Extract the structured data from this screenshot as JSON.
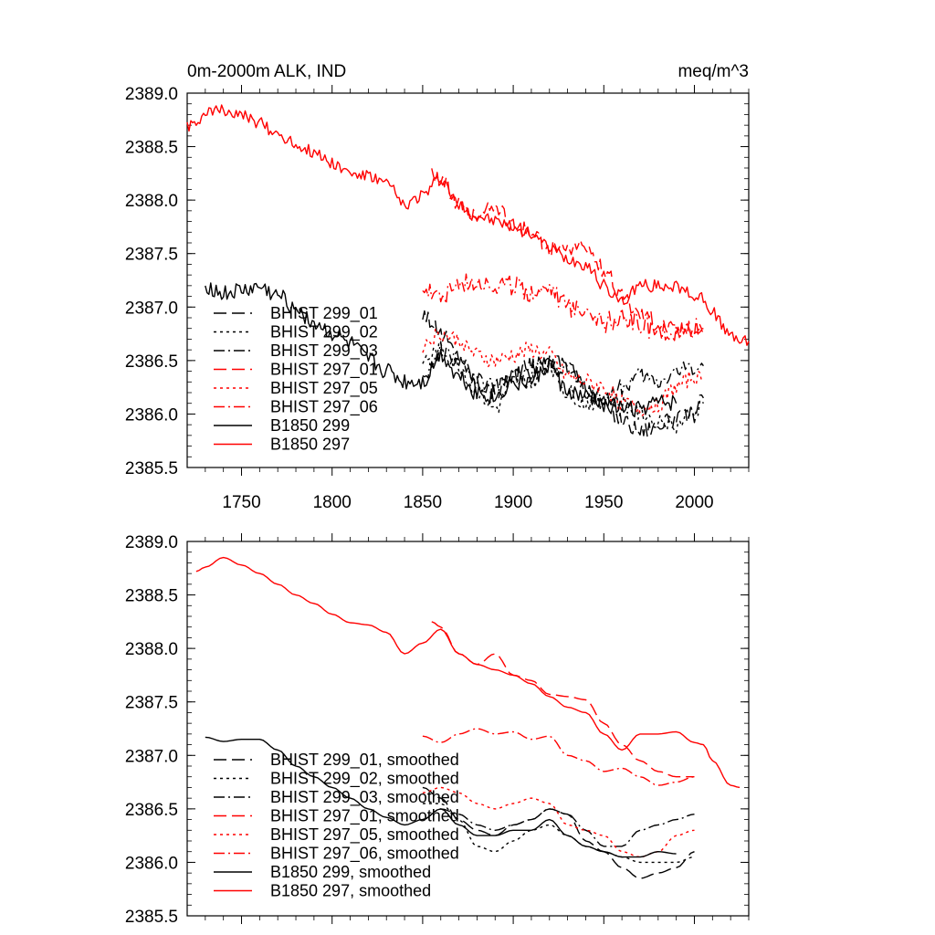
{
  "chart_data": [
    {
      "type": "line",
      "title_left": "0m-2000m ALK, IND",
      "title_right": "meq/m^3",
      "xlim": [
        1720,
        2030
      ],
      "ylim": [
        2385.5,
        2389.0
      ],
      "xticks": [
        1750,
        1800,
        1850,
        1900,
        1950,
        2000
      ],
      "xtick_labels": [
        "1750",
        "1800",
        "1850",
        "1900",
        "1950",
        "2000"
      ],
      "yticks": [
        2385.5,
        2386.0,
        2386.5,
        2387.0,
        2387.5,
        2388.0,
        2388.5,
        2389.0
      ],
      "ytick_labels": [
        "2385.5",
        "2386.0",
        "2386.5",
        "2387.0",
        "2387.5",
        "2388.0",
        "2388.5",
        "2389.0"
      ],
      "legend": [
        "BHIST 299_01",
        "BHIST 299_02",
        "BHIST 299_03",
        "BHIST 297_01",
        "BHIST 297_05",
        "BHIST 297_06",
        "B1850 299",
        "B1850 297"
      ],
      "series": [
        {
          "name": "BHIST 299_01",
          "color": "#000000",
          "dash": "long",
          "noise": 0.08,
          "x": [
            1850,
            1860,
            1870,
            1880,
            1890,
            1900,
            1910,
            1920,
            1930,
            1940,
            1950,
            1960,
            1970,
            1980,
            1990,
            2000,
            2005
          ],
          "y": [
            2386.95,
            2386.75,
            2386.55,
            2386.3,
            2386.2,
            2386.4,
            2386.45,
            2386.5,
            2386.5,
            2386.2,
            2386.1,
            2385.95,
            2385.85,
            2385.9,
            2385.95,
            2386.0,
            2386.15
          ]
        },
        {
          "name": "BHIST 299_02",
          "color": "#000000",
          "dash": "dot",
          "noise": 0.08,
          "x": [
            1850,
            1860,
            1870,
            1880,
            1890,
            1900,
            1910,
            1920,
            1930,
            1940,
            1950,
            1960,
            1970,
            1980,
            1990,
            2000,
            2005
          ],
          "y": [
            2386.5,
            2386.6,
            2386.45,
            2386.2,
            2386.05,
            2386.3,
            2386.3,
            2386.45,
            2386.2,
            2386.1,
            2386.15,
            2386.1,
            2386.0,
            2385.95,
            2385.9,
            2386.05,
            2386.1
          ]
        },
        {
          "name": "BHIST 299_03",
          "color": "#000000",
          "dash": "dashdot",
          "noise": 0.08,
          "x": [
            1850,
            1860,
            1870,
            1880,
            1890,
            1900,
            1910,
            1920,
            1930,
            1940,
            1950,
            1960,
            1970,
            1980,
            1990,
            2000,
            2005
          ],
          "y": [
            2386.35,
            2386.6,
            2386.5,
            2386.3,
            2386.25,
            2386.35,
            2386.4,
            2386.45,
            2386.4,
            2386.25,
            2386.15,
            2386.25,
            2386.35,
            2386.3,
            2386.4,
            2386.45,
            2386.45
          ]
        },
        {
          "name": "BHIST 297_01",
          "color": "#ff0000",
          "dash": "long",
          "noise": 0.08,
          "x": [
            1855,
            1860,
            1870,
            1880,
            1890,
            1900,
            1910,
            1920,
            1930,
            1940,
            1950,
            1960,
            1970,
            1980,
            1990,
            2000,
            2005
          ],
          "y": [
            2388.25,
            2388.2,
            2387.95,
            2387.85,
            2387.95,
            2387.75,
            2387.7,
            2387.55,
            2387.55,
            2387.55,
            2387.35,
            2387.1,
            2386.95,
            2386.85,
            2386.8,
            2386.8,
            2386.75
          ]
        },
        {
          "name": "BHIST 297_05",
          "color": "#ff0000",
          "dash": "dot",
          "noise": 0.08,
          "x": [
            1850,
            1860,
            1870,
            1880,
            1890,
            1900,
            1910,
            1920,
            1930,
            1940,
            1950,
            1960,
            1970,
            1980,
            1990,
            2000,
            2005
          ],
          "y": [
            2386.65,
            2386.75,
            2386.7,
            2386.55,
            2386.5,
            2386.55,
            2386.6,
            2386.55,
            2386.35,
            2386.3,
            2386.25,
            2386.1,
            2386.05,
            2386.1,
            2386.25,
            2386.35,
            2386.3
          ]
        },
        {
          "name": "BHIST 297_06",
          "color": "#ff0000",
          "dash": "dashdot",
          "noise": 0.1,
          "x": [
            1850,
            1860,
            1870,
            1880,
            1890,
            1900,
            1910,
            1920,
            1930,
            1940,
            1950,
            1960,
            1970,
            1980,
            1990,
            2000,
            2005
          ],
          "y": [
            2387.2,
            2387.1,
            2387.2,
            2387.25,
            2387.2,
            2387.2,
            2387.15,
            2387.2,
            2387.0,
            2387.0,
            2386.85,
            2386.9,
            2386.85,
            2386.75,
            2386.75,
            2386.8,
            2386.8
          ]
        },
        {
          "name": "B1850 299",
          "color": "#000000",
          "dash": "solid",
          "noise": 0.08,
          "x": [
            1730,
            1740,
            1750,
            1760,
            1770,
            1780,
            1790,
            1800,
            1810,
            1820,
            1830,
            1840,
            1850,
            1860,
            1870,
            1880,
            1890,
            1900,
            1910,
            1920,
            1930,
            1940,
            1950,
            1960,
            1970,
            1980,
            1990
          ],
          "y": [
            2387.2,
            2387.12,
            2387.15,
            2387.18,
            2387.1,
            2387.0,
            2386.85,
            2386.75,
            2386.65,
            2386.5,
            2386.4,
            2386.3,
            2386.3,
            2386.55,
            2386.35,
            2386.2,
            2386.15,
            2386.3,
            2386.3,
            2386.45,
            2386.2,
            2386.15,
            2386.1,
            2386.05,
            2386.05,
            2386.1,
            2386.1
          ]
        },
        {
          "name": "B1850 297",
          "color": "#ff0000",
          "dash": "solid",
          "noise": 0.06,
          "x": [
            1720,
            1725,
            1730,
            1740,
            1750,
            1760,
            1770,
            1780,
            1790,
            1800,
            1810,
            1820,
            1830,
            1840,
            1850,
            1860,
            1870,
            1880,
            1890,
            1900,
            1910,
            1920,
            1930,
            1940,
            1950,
            1960,
            1970,
            1980,
            1990,
            2000,
            2005,
            2010,
            2020,
            2030
          ],
          "y": [
            2388.7,
            2388.75,
            2388.8,
            2388.85,
            2388.78,
            2388.72,
            2388.62,
            2388.52,
            2388.45,
            2388.35,
            2388.25,
            2388.22,
            2388.15,
            2387.95,
            2388.05,
            2388.2,
            2387.95,
            2387.85,
            2387.8,
            2387.75,
            2387.7,
            2387.55,
            2387.45,
            2387.4,
            2387.2,
            2387.05,
            2387.2,
            2387.2,
            2387.2,
            2387.1,
            2387.1,
            2386.95,
            2386.72,
            2386.68
          ]
        }
      ]
    },
    {
      "type": "line",
      "title_left": "",
      "title_right": "",
      "xlim": [
        1720,
        2030
      ],
      "ylim": [
        2385.5,
        2389.0
      ],
      "xticks": [
        1750,
        1800,
        1850,
        1900,
        1950,
        2000
      ],
      "xtick_labels": [],
      "yticks": [
        2385.5,
        2386.0,
        2386.5,
        2387.0,
        2387.5,
        2388.0,
        2388.5,
        2389.0
      ],
      "ytick_labels": [
        "2385.5",
        "2386.0",
        "2386.5",
        "2387.0",
        "2387.5",
        "2388.0",
        "2388.5",
        "2389.0"
      ],
      "legend": [
        "BHIST 299_01, smoothed",
        "BHIST 299_02, smoothed",
        "BHIST 299_03, smoothed",
        "BHIST 297_01, smoothed",
        "BHIST 297_05, smoothed",
        "BHIST 297_06, smoothed",
        "B1850 299, smoothed",
        "B1850 297, smoothed"
      ],
      "series": [
        {
          "name": "BHIST 299_01, smoothed",
          "color": "#000000",
          "dash": "long",
          "noise": 0,
          "x": [
            1850,
            1860,
            1870,
            1880,
            1890,
            1900,
            1910,
            1920,
            1930,
            1940,
            1950,
            1960,
            1970,
            1980,
            1990,
            2000
          ],
          "y": [
            2386.7,
            2386.6,
            2386.4,
            2386.3,
            2386.25,
            2386.35,
            2386.4,
            2386.5,
            2386.45,
            2386.2,
            2386.1,
            2385.95,
            2385.85,
            2385.9,
            2385.95,
            2386.1
          ]
        },
        {
          "name": "BHIST 299_02, smoothed",
          "color": "#000000",
          "dash": "dot",
          "noise": 0,
          "x": [
            1850,
            1860,
            1870,
            1880,
            1890,
            1900,
            1910,
            1920,
            1930,
            1940,
            1950,
            1960,
            1970,
            1980,
            1990,
            2000
          ],
          "y": [
            2386.55,
            2386.55,
            2386.4,
            2386.15,
            2386.1,
            2386.2,
            2386.3,
            2386.35,
            2386.25,
            2386.15,
            2386.1,
            2386.05,
            2386.0,
            2386.0,
            2386.0,
            2386.05
          ]
        },
        {
          "name": "BHIST 299_03, smoothed",
          "color": "#000000",
          "dash": "dashdot",
          "noise": 0,
          "x": [
            1850,
            1860,
            1870,
            1880,
            1890,
            1900,
            1910,
            1920,
            1930,
            1940,
            1950,
            1960,
            1970,
            1980,
            1990,
            2000
          ],
          "y": [
            2386.4,
            2386.5,
            2386.45,
            2386.35,
            2386.3,
            2386.35,
            2386.4,
            2386.5,
            2386.45,
            2386.3,
            2386.15,
            2386.15,
            2386.3,
            2386.35,
            2386.4,
            2386.45
          ]
        },
        {
          "name": "BHIST 297_01, smoothed",
          "color": "#ff0000",
          "dash": "long",
          "noise": 0,
          "x": [
            1855,
            1860,
            1870,
            1880,
            1890,
            1900,
            1910,
            1920,
            1930,
            1940,
            1950,
            1960,
            1970,
            1980,
            1990,
            2000
          ],
          "y": [
            2388.25,
            2388.2,
            2387.95,
            2387.85,
            2387.95,
            2387.75,
            2387.7,
            2387.57,
            2387.55,
            2387.52,
            2387.3,
            2387.1,
            2386.95,
            2386.85,
            2386.8,
            2386.8
          ]
        },
        {
          "name": "BHIST 297_05, smoothed",
          "color": "#ff0000",
          "dash": "dot",
          "noise": 0,
          "x": [
            1850,
            1860,
            1870,
            1880,
            1890,
            1900,
            1910,
            1920,
            1930,
            1940,
            1950,
            1960,
            1970,
            1980,
            1990,
            2000
          ],
          "y": [
            2386.65,
            2386.7,
            2386.65,
            2386.55,
            2386.5,
            2386.55,
            2386.6,
            2386.55,
            2386.35,
            2386.3,
            2386.25,
            2386.1,
            2386.05,
            2386.1,
            2386.25,
            2386.3
          ]
        },
        {
          "name": "BHIST 297_06, smoothed",
          "color": "#ff0000",
          "dash": "dashdot",
          "noise": 0,
          "x": [
            1850,
            1860,
            1870,
            1880,
            1890,
            1900,
            1910,
            1920,
            1930,
            1940,
            1950,
            1960,
            1970,
            1980,
            1990,
            2000
          ],
          "y": [
            2387.18,
            2387.12,
            2387.2,
            2387.25,
            2387.2,
            2387.22,
            2387.15,
            2387.18,
            2387.0,
            2386.95,
            2386.85,
            2386.88,
            2386.8,
            2386.72,
            2386.75,
            2386.8
          ]
        },
        {
          "name": "B1850 299, smoothed",
          "color": "#000000",
          "dash": "solid",
          "noise": 0,
          "x": [
            1730,
            1740,
            1750,
            1760,
            1770,
            1780,
            1790,
            1800,
            1810,
            1820,
            1830,
            1840,
            1850,
            1860,
            1870,
            1880,
            1890,
            1900,
            1910,
            1920,
            1930,
            1940,
            1950,
            1960,
            1970,
            1980,
            1990
          ],
          "y": [
            2387.17,
            2387.13,
            2387.15,
            2387.15,
            2387.05,
            2386.9,
            2386.8,
            2386.7,
            2386.6,
            2386.5,
            2386.42,
            2386.35,
            2386.4,
            2386.5,
            2386.35,
            2386.25,
            2386.25,
            2386.3,
            2386.3,
            2386.4,
            2386.25,
            2386.15,
            2386.1,
            2386.05,
            2386.05,
            2386.1,
            2386.08
          ]
        },
        {
          "name": "B1850 297, smoothed",
          "color": "#ff0000",
          "dash": "solid",
          "noise": 0,
          "x": [
            1725,
            1730,
            1740,
            1750,
            1760,
            1770,
            1780,
            1790,
            1800,
            1810,
            1820,
            1830,
            1840,
            1850,
            1860,
            1870,
            1880,
            1890,
            1900,
            1910,
            1920,
            1930,
            1940,
            1950,
            1960,
            1970,
            1980,
            1990,
            2000,
            2005,
            2010,
            2020,
            2025
          ],
          "y": [
            2388.72,
            2388.76,
            2388.85,
            2388.78,
            2388.7,
            2388.6,
            2388.5,
            2388.42,
            2388.32,
            2388.24,
            2388.22,
            2388.15,
            2387.95,
            2388.05,
            2388.18,
            2387.95,
            2387.85,
            2387.8,
            2387.75,
            2387.67,
            2387.55,
            2387.45,
            2387.4,
            2387.2,
            2387.05,
            2387.2,
            2387.2,
            2387.22,
            2387.12,
            2387.1,
            2386.95,
            2386.72,
            2386.7
          ]
        }
      ]
    }
  ]
}
